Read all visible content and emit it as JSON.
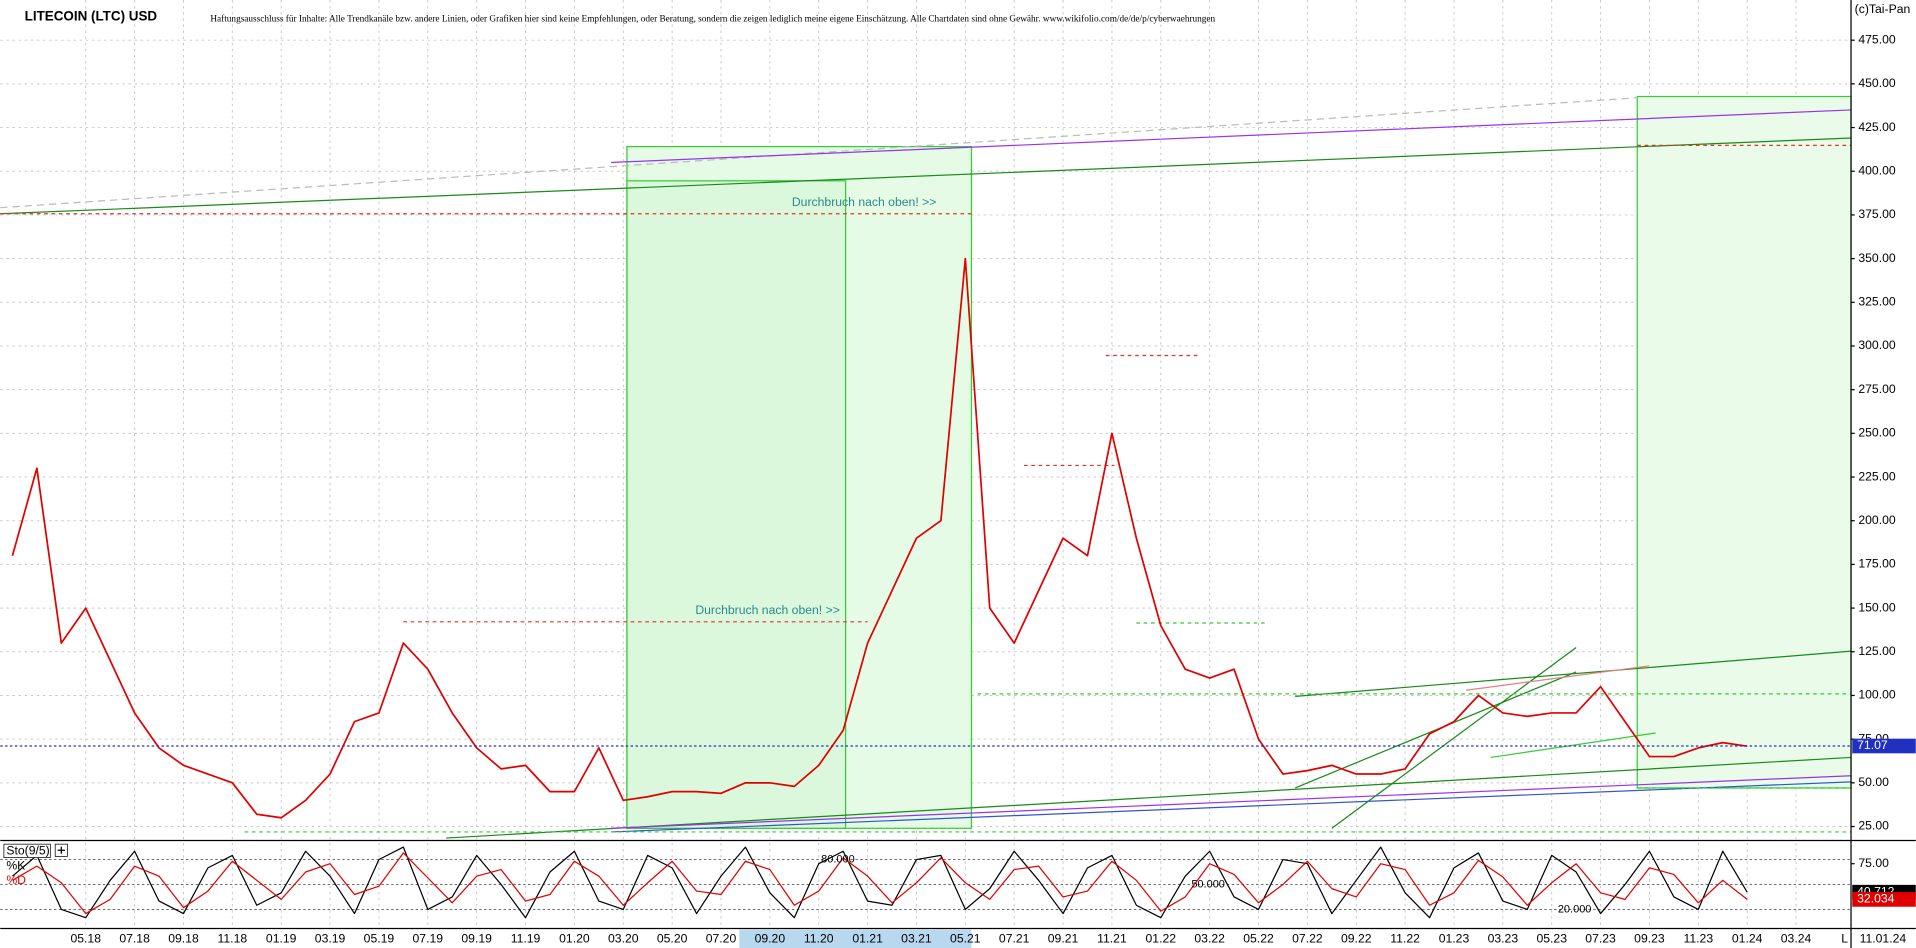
{
  "chart_data": [
    {
      "type": "line",
      "title": "LITECOIN (LTC) USD",
      "subtitle": "Haftungsausschluss für Inhalte: Alle Trendkanäle bzw. andere Linien, oder Grafiken hier sind keine Empfehlungen, oder Beratung, sondern die zeigen lediglich meine eigene Einschätzung. Alle Chartdaten sind ohne Gewähr. www.wikifolio.com/de/de/p/cyberwaehrungen",
      "source": "(c)Tai-Pan",
      "annotations": [
        "Durchbruch nach oben! >>",
        "Durchbruch nach oben! >>"
      ],
      "date_label": "11.01.24",
      "corner_label": "L",
      "last_price": 71.07,
      "categories": [
        null,
        null,
        null,
        "05.18",
        null,
        "07.18",
        null,
        "09.18",
        null,
        "11.18",
        null,
        "01.19",
        null,
        "03.19",
        null,
        "05.19",
        null,
        "07.19",
        null,
        "09.19",
        null,
        "11.19",
        null,
        "01.20",
        null,
        "03.20",
        null,
        "05.20",
        null,
        "07.20",
        null,
        "09.20",
        null,
        "11.20",
        null,
        "01.21",
        null,
        "03.21",
        null,
        "05.21",
        null,
        "07.21",
        null,
        "09.21",
        null,
        "11.21",
        null,
        "01.22",
        null,
        "03.22",
        null,
        "05.22",
        null,
        "07.22",
        null,
        "09.22",
        null,
        "11.22",
        null,
        "01.23",
        null,
        "03.23",
        null,
        "05.23",
        null,
        "07.23",
        null,
        "09.23",
        null,
        "11.23",
        null,
        "01.24",
        null,
        "03.24",
        null
      ],
      "series": [
        {
          "name": "LTC",
          "color": "#e00000",
          "values": [
            180,
            230,
            130,
            150,
            120,
            90,
            70,
            60,
            55,
            50,
            32,
            30,
            40,
            55,
            85,
            90,
            130,
            115,
            90,
            70,
            58,
            60,
            45,
            45,
            70,
            40,
            42,
            45,
            45,
            44,
            50,
            50,
            48,
            60,
            80,
            130,
            160,
            190,
            200,
            350,
            150,
            130,
            160,
            190,
            180,
            250,
            190,
            140,
            115,
            110,
            115,
            75,
            55,
            57,
            60,
            55,
            55,
            58,
            78,
            85,
            100,
            90,
            88,
            90,
            90,
            105,
            85,
            65,
            65,
            70,
            73,
            71,
            null,
            null,
            null
          ]
        }
      ],
      "ylim": [
        17,
        498
      ],
      "yticks": [
        {
          "value": 25,
          "label": "25.00"
        },
        {
          "value": 50,
          "label": "50.00"
        },
        {
          "value": 75,
          "label": "75.00"
        },
        {
          "value": 100,
          "label": "100.00"
        },
        {
          "value": 125,
          "label": "125.00"
        },
        {
          "value": 150,
          "label": "150.00"
        },
        {
          "value": 175,
          "label": "175.00"
        },
        {
          "value": 200,
          "label": "200.00"
        },
        {
          "value": 225,
          "label": "225.00"
        },
        {
          "value": 250,
          "label": "250.00"
        },
        {
          "value": 275,
          "label": "275.00"
        },
        {
          "value": 300,
          "label": "300.00"
        },
        {
          "value": 325,
          "label": "325.00"
        },
        {
          "value": 350,
          "label": "350.00"
        },
        {
          "value": 375,
          "label": "375.00"
        },
        {
          "value": 400,
          "label": "400.00"
        },
        {
          "value": 425,
          "label": "425.00"
        },
        {
          "value": 450,
          "label": "450.00"
        },
        {
          "value": 475,
          "label": "475.00"
        }
      ],
      "grid": true
    },
    {
      "type": "line",
      "title": "Sto(9/5)",
      "series": [
        {
          "name": "%K",
          "color": "#000000",
          "values": [
            60,
            85,
            20,
            10,
            55,
            90,
            30,
            15,
            70,
            85,
            25,
            40,
            90,
            60,
            15,
            80,
            95,
            20,
            35,
            85,
            50,
            10,
            65,
            90,
            30,
            20,
            85,
            70,
            15,
            60,
            95,
            40,
            10,
            75,
            90,
            30,
            25,
            80,
            85,
            20,
            45,
            90,
            55,
            15,
            70,
            85,
            25,
            10,
            60,
            90,
            35,
            20,
            80,
            75,
            15,
            55,
            95,
            40,
            10,
            70,
            88,
            30,
            20,
            85,
            65,
            15,
            50,
            90,
            35,
            20,
            90,
            40.712,
            null,
            null,
            null
          ]
        },
        {
          "name": "%D",
          "color": "#e00000",
          "values": [
            55,
            72,
            52,
            15,
            32,
            72,
            60,
            22,
            42,
            78,
            55,
            32,
            65,
            75,
            38,
            48,
            88,
            58,
            28,
            60,
            68,
            30,
            38,
            78,
            60,
            25,
            52,
            78,
            42,
            38,
            78,
            68,
            25,
            42,
            82,
            60,
            28,
            52,
            82,
            52,
            32,
            68,
            72,
            35,
            42,
            78,
            55,
            18,
            35,
            75,
            62,
            28,
            50,
            78,
            45,
            35,
            75,
            68,
            25,
            40,
            79,
            59,
            25,
            52,
            75,
            40,
            32,
            70,
            62,
            28,
            55,
            32.034,
            null,
            null,
            null
          ]
        }
      ],
      "levels": [
        {
          "value": 80,
          "label": "80.000"
        },
        {
          "value": 50,
          "label": "50.000"
        },
        {
          "value": 20,
          "label": "20.000"
        }
      ],
      "ylim": [
        0,
        100
      ],
      "yticks": [
        {
          "value": 75,
          "label": "75.00"
        }
      ]
    }
  ]
}
